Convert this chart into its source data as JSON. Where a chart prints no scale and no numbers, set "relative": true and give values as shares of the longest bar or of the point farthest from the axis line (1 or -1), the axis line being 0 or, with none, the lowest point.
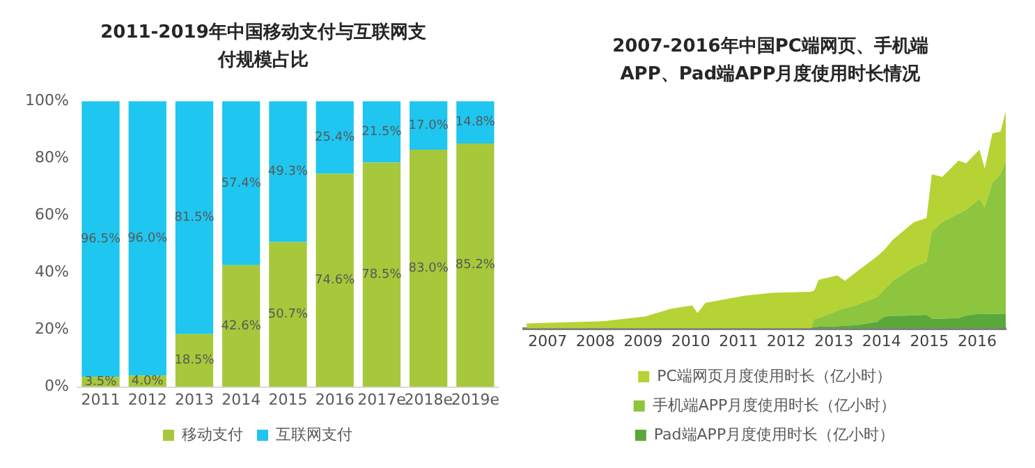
{
  "chart_data": [
    {
      "type": "bar",
      "title": "2011-2019年中国移动支付与互联网支付规模占比",
      "stacked": true,
      "categories": [
        "2011",
        "2012",
        "2013",
        "2014",
        "2015",
        "2016",
        "2017e",
        "2018e",
        "2019e"
      ],
      "series": [
        {
          "name": "移动支付",
          "color": "#a6c83a",
          "values": [
            3.5,
            4.0,
            18.5,
            42.6,
            50.7,
            74.6,
            78.5,
            83.0,
            85.2
          ],
          "value_labels": [
            "3.5%",
            "4.0%",
            "18.5%",
            "42.6%",
            "50.7%",
            "74.6%",
            "78.5%",
            "83.0%",
            "85.2%"
          ]
        },
        {
          "name": "互联网支付",
          "color": "#1ec6f0",
          "values": [
            96.5,
            96.0,
            81.5,
            57.4,
            49.3,
            25.4,
            21.5,
            17.0,
            14.8
          ],
          "value_labels": [
            "96.5%",
            "96.0%",
            "81.5%",
            "57.4%",
            "49.3%",
            "25.4%",
            "21.5%",
            "17.0%",
            "14.8%"
          ]
        }
      ],
      "ylim": [
        0,
        100
      ],
      "yticks": [
        {
          "value": 0,
          "label": "0%"
        },
        {
          "value": 20,
          "label": "20%"
        },
        {
          "value": 40,
          "label": "40%"
        },
        {
          "value": 60,
          "label": "60%"
        },
        {
          "value": 80,
          "label": "80%"
        },
        {
          "value": 100,
          "label": "100%"
        }
      ],
      "grid": false,
      "legend": "bottom"
    },
    {
      "type": "area",
      "title": "2007-2016年中国PC端网页、手机端APP、Pad端APP月度使用时长情况",
      "stacked": true,
      "relative": true,
      "x": [
        2007.06,
        2007.77,
        2008.66,
        2009.54,
        2010.09,
        2010.53,
        2010.64,
        2010.81,
        2011.64,
        2012.19,
        2013.02,
        2013.09,
        2013.18,
        2013.57,
        2013.73,
        2013.95,
        2014.4,
        2014.56,
        2014.73,
        2015.17,
        2015.44,
        2015.55,
        2015.77,
        2016.11,
        2016.27,
        2016.55,
        2016.66,
        2016.82,
        2016.99,
        2017.1
      ],
      "series": [
        {
          "name": "Pad端APP月度使用时长（亿小时）",
          "color": "#5aa83a",
          "values": [
            0,
            0,
            0,
            0,
            0,
            0,
            0,
            0,
            0,
            0,
            0,
            0.005,
            0.008,
            0.01,
            0.013,
            0.015,
            0.03,
            0.055,
            0.058,
            0.06,
            0.063,
            0.045,
            0.045,
            0.048,
            0.06,
            0.068,
            0.065,
            0.068,
            0.068,
            0.068
          ]
        },
        {
          "name": "手机端APP月度使用时长（亿小时）",
          "color": "#8dc53e",
          "values": [
            0,
            0,
            0,
            0,
            0,
            0,
            0,
            0,
            0,
            0,
            0,
            0.038,
            0.04,
            0.071,
            0.08,
            0.091,
            0.114,
            0.126,
            0.161,
            0.222,
            0.244,
            0.401,
            0.446,
            0.481,
            0.487,
            0.529,
            0.494,
            0.605,
            0.642,
            0.705
          ]
        },
        {
          "name": "PC端网页月度使用时长（亿小时）",
          "color": "#b5d334",
          "values": [
            0.023,
            0.028,
            0.033,
            0.055,
            0.091,
            0.106,
            0.071,
            0.118,
            0.151,
            0.164,
            0.169,
            0.133,
            0.176,
            0.163,
            0.126,
            0.151,
            0.188,
            0.182,
            0.189,
            0.207,
            0.202,
            0.264,
            0.207,
            0.244,
            0.214,
            0.227,
            0.177,
            0.226,
            0.197,
            0.227
          ]
        }
      ],
      "xlim": [
        2007,
        2017.1
      ],
      "xticks": [
        {
          "value": 2007.5,
          "label": "2007"
        },
        {
          "value": 2008.5,
          "label": "2008"
        },
        {
          "value": 2009.5,
          "label": "2009"
        },
        {
          "value": 2010.5,
          "label": "2010"
        },
        {
          "value": 2011.5,
          "label": "2011"
        },
        {
          "value": 2012.5,
          "label": "2012"
        },
        {
          "value": 2013.5,
          "label": "2013"
        },
        {
          "value": 2014.5,
          "label": "2014"
        },
        {
          "value": 2015.5,
          "label": "2015"
        },
        {
          "value": 2016.5,
          "label": "2016"
        }
      ],
      "grid": false,
      "legend": "bottom"
    }
  ]
}
